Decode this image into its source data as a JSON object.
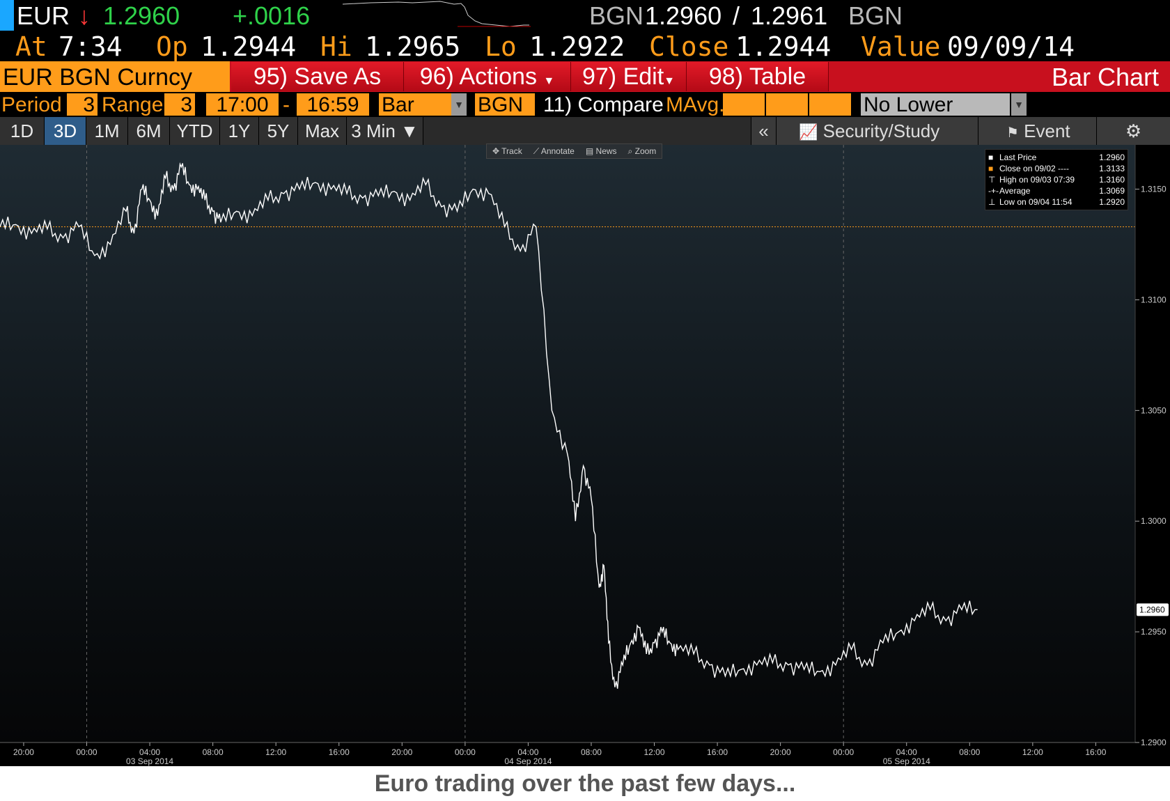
{
  "header": {
    "ticker": "EUR",
    "direction_arrow": "↓",
    "last_price": "1.2960",
    "net_change": "+.0016",
    "bid_source": "BGN",
    "bid": "1.2960",
    "separator": "/",
    "ask": "1.2961",
    "ask_source": "BGN",
    "at_label": "At",
    "at_time": "7:34",
    "open_label": "Op",
    "open_value": "1.2944",
    "high_label": "Hi",
    "high_value": "1.2965",
    "low_label": "Lo",
    "low_value": "1.2922",
    "close_label": "Close",
    "close_value": "1.2944",
    "value_label": "Value",
    "value_date": "09/09/14"
  },
  "toolbar": {
    "security": "EUR BGN Curncy",
    "save_as": "95) Save As",
    "actions": "96) Actions",
    "edit": "97) Edit",
    "table": "98) Table",
    "chart_name": "Bar Chart"
  },
  "settings": {
    "period_label": "Period",
    "period_value": "3",
    "range_label": "Range",
    "range_value": "3",
    "start_time": "17:00",
    "dash": "-",
    "end_time": "16:59",
    "chart_style": "Bar",
    "source": "BGN",
    "compare": "11) Compare",
    "mavg_label": "MAvg.",
    "lower_chart": "No Lower Chart"
  },
  "tabs": [
    "1D",
    "3D",
    "1M",
    "6M",
    "YTD",
    "1Y",
    "5Y",
    "Max",
    "3 Min ▼"
  ],
  "active_tab": "3D",
  "tools": {
    "collapse": "«",
    "security_study": "Security/Study",
    "event": "Event",
    "settings_icon": "⚙"
  },
  "chart_toolbar": [
    "Track",
    "Annotate",
    "News",
    "Zoom"
  ],
  "legend": [
    {
      "label": "Last Price",
      "value": "1.2960"
    },
    {
      "label": "Close on 09/02 ----",
      "value": "1.3133"
    },
    {
      "label": "High on 09/03 07:39",
      "value": "1.3160"
    },
    {
      "label": "Average",
      "value": "1.3069"
    },
    {
      "label": "Low on 09/04 11:54",
      "value": "1.2920"
    }
  ],
  "colors": {
    "orange": "#ff9c1a",
    "red_bar": "#c8101e",
    "price_line": "#ffffff",
    "close_line": "#ff9c1a"
  },
  "caption": "Euro trading over the past few days...",
  "chart_data": {
    "type": "line",
    "ylim": [
      1.29,
      1.317
    ],
    "y_ticks": [
      "1.3150",
      "1.3100",
      "1.3050",
      "1.3000",
      "1.2950",
      "1.2900"
    ],
    "last_price_label": "1.2960",
    "close_reference": 1.3133,
    "x_tick_labels": [
      "20:00",
      "00:00",
      "04:00",
      "08:00",
      "12:00",
      "16:00",
      "20:00",
      "00:00",
      "04:00",
      "08:00",
      "12:00",
      "16:00",
      "20:00",
      "00:00",
      "04:00",
      "08:00",
      "12:00",
      "16:00"
    ],
    "date_labels": [
      "03 Sep 2014",
      "04 Sep 2014",
      "05 Sep 2014"
    ],
    "x_hours_start": "02 Sep 2014 18:30",
    "series": [
      {
        "hours": [
          0,
          1,
          2,
          3,
          4,
          5,
          6,
          7,
          8,
          8.5,
          9,
          9.5,
          10,
          10.5,
          11,
          11.5,
          12,
          12.5,
          13,
          13.5,
          14,
          15,
          16,
          17,
          18,
          19,
          20,
          21,
          22,
          23,
          24,
          25,
          26,
          27,
          28,
          29,
          30,
          31,
          32,
          33,
          34,
          35,
          36,
          36.5,
          37,
          37.5,
          38,
          38.3,
          38.6,
          39,
          39.5,
          40,
          40.5,
          41,
          41.5,
          42,
          42.5,
          43,
          44,
          45,
          46,
          47,
          48,
          49,
          50,
          51,
          52,
          53,
          54,
          55,
          56,
          57,
          58,
          59,
          60,
          61,
          62
        ],
        "values": [
          1.3133,
          1.3134,
          1.313,
          1.3132,
          1.3128,
          1.3133,
          1.312,
          1.3125,
          1.314,
          1.313,
          1.315,
          1.3145,
          1.3138,
          1.3155,
          1.315,
          1.316,
          1.3152,
          1.315,
          1.3145,
          1.314,
          1.3135,
          1.314,
          1.3138,
          1.3145,
          1.3148,
          1.315,
          1.3153,
          1.315,
          1.3148,
          1.3146,
          1.3147,
          1.3149,
          1.3145,
          1.3152,
          1.3142,
          1.314,
          1.315,
          1.3148,
          1.3133,
          1.3122,
          1.3133,
          1.305,
          1.303,
          1.3,
          1.3025,
          1.301,
          1.297,
          1.298,
          1.2945,
          1.2925,
          1.2935,
          1.2945,
          1.2952,
          1.294,
          1.2945,
          1.295,
          1.2945,
          1.2942,
          1.294,
          1.2935,
          1.293,
          1.2933,
          1.2935,
          1.2936,
          1.2935,
          1.2933,
          1.2932,
          1.2935,
          1.2942,
          1.2935,
          1.2945,
          1.295,
          1.2955,
          1.296,
          1.2955,
          1.296,
          1.296
        ]
      }
    ],
    "grid": false,
    "legend_position": "top-right"
  }
}
